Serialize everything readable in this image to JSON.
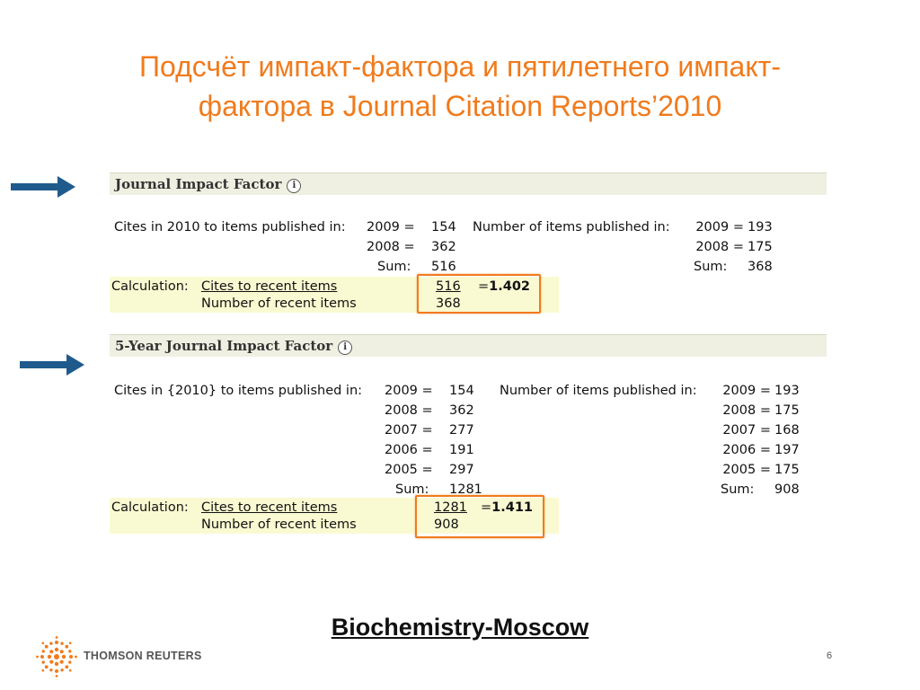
{
  "slide": {
    "title_line1": "Подсчёт импакт-фактора и пятилетнего импакт-",
    "title_line2": "фактора в Journal Citation Reports’2010",
    "journal_name": "Biochemistry-Moscow",
    "page_number": "6",
    "logo_text": "THOMSON REUTERS"
  },
  "jif": {
    "header": "Journal Impact Factor",
    "cites_label": "Cites in 2010 to items published in:",
    "items_label": "Number of items published in:",
    "cites": [
      {
        "year": "2009",
        "value": "154"
      },
      {
        "year": "2008",
        "value": "362"
      }
    ],
    "items": [
      {
        "year": "2009",
        "value": "193"
      },
      {
        "year": "2008",
        "value": "175"
      }
    ],
    "sum_label": "Sum:",
    "cites_sum": "516",
    "items_sum": "368",
    "calc_label": "Calculation:",
    "calc_numerator_label": "Cites to recent items",
    "calc_denominator_label": "Number of recent items",
    "calc_numerator": "516",
    "calc_denominator": "368",
    "calc_result": "1.402"
  },
  "jif5": {
    "header": "5-Year Journal Impact Factor",
    "cites_label": "Cites in {2010} to items published in:",
    "items_label": "Number of items published in:",
    "cites": [
      {
        "year": "2009",
        "value": "154"
      },
      {
        "year": "2008",
        "value": "362"
      },
      {
        "year": "2007",
        "value": "277"
      },
      {
        "year": "2006",
        "value": "191"
      },
      {
        "year": "2005",
        "value": "297"
      }
    ],
    "items": [
      {
        "year": "2009",
        "value": "193"
      },
      {
        "year": "2008",
        "value": "175"
      },
      {
        "year": "2007",
        "value": "168"
      },
      {
        "year": "2006",
        "value": "197"
      },
      {
        "year": "2005",
        "value": "175"
      }
    ],
    "sum_label": "Sum:",
    "cites_sum": "1281",
    "items_sum": "908",
    "calc_label": "Calculation:",
    "calc_numerator_label": "Cites to recent items",
    "calc_denominator_label": "Number of recent items",
    "calc_numerator": "1281",
    "calc_denominator": "908",
    "calc_result": "1.411"
  },
  "colors": {
    "accent": "#f07b1d",
    "arrow": "#1f5a8c",
    "header_bg": "#f0f0e2",
    "calc_bg": "#fafad2"
  },
  "icons": {
    "arrow": "right-arrow-icon",
    "info": "info-icon",
    "logo": "thomson-reuters-logo"
  }
}
